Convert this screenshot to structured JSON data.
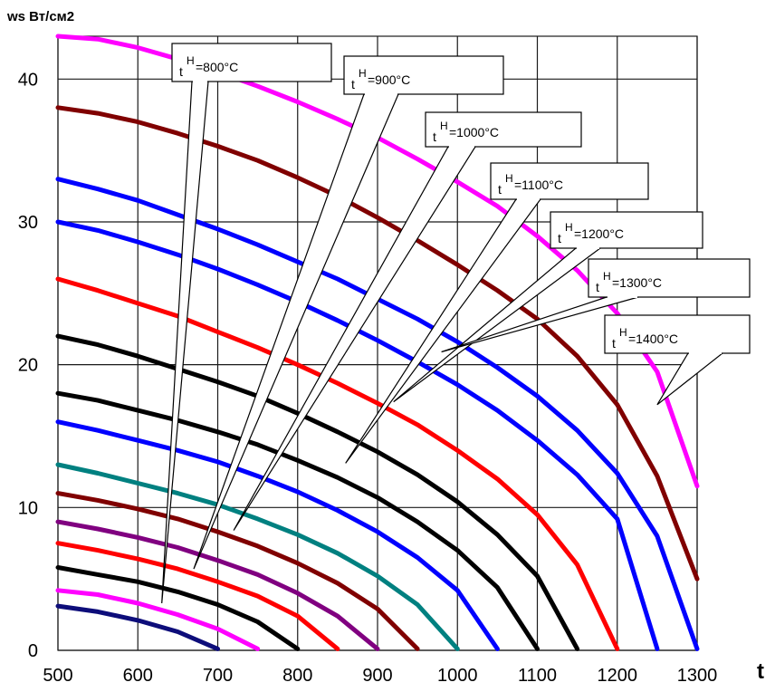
{
  "chart_data": {
    "type": "line",
    "ylabel": "ws Вт/см2",
    "xlabel": "t",
    "xlim": [
      500,
      1300
    ],
    "ylim": [
      0,
      43
    ],
    "xticks": [
      500,
      600,
      700,
      800,
      900,
      1000,
      1100,
      1200,
      1300
    ],
    "yticks": [
      0,
      10,
      20,
      30,
      40
    ],
    "grid": true,
    "series": [
      {
        "color": "#0d0d7a",
        "points": [
          [
            500,
            3.1
          ],
          [
            550,
            2.7
          ],
          [
            600,
            2.1
          ],
          [
            650,
            1.3
          ],
          [
            700,
            0.1
          ]
        ]
      },
      {
        "color": "#ff00ff",
        "points": [
          [
            500,
            4.2
          ],
          [
            550,
            3.9
          ],
          [
            600,
            3.3
          ],
          [
            650,
            2.5
          ],
          [
            700,
            1.5
          ],
          [
            750,
            0.1
          ]
        ]
      },
      {
        "color": "#000000",
        "points": [
          [
            500,
            5.8
          ],
          [
            550,
            5.3
          ],
          [
            600,
            4.8
          ],
          [
            650,
            4.1
          ],
          [
            700,
            3.2
          ],
          [
            750,
            2.0
          ],
          [
            800,
            0.1
          ]
        ]
      },
      {
        "color": "#ff0000",
        "points": [
          [
            500,
            7.5
          ],
          [
            550,
            7.0
          ],
          [
            600,
            6.4
          ],
          [
            650,
            5.7
          ],
          [
            700,
            4.8
          ],
          [
            750,
            3.8
          ],
          [
            800,
            2.4
          ],
          [
            850,
            0.1
          ]
        ]
      },
      {
        "color": "#800080",
        "points": [
          [
            500,
            9.0
          ],
          [
            550,
            8.5
          ],
          [
            600,
            7.9
          ],
          [
            650,
            7.2
          ],
          [
            700,
            6.3
          ],
          [
            750,
            5.3
          ],
          [
            800,
            4.0
          ],
          [
            850,
            2.4
          ],
          [
            900,
            0.1
          ]
        ]
      },
      {
        "color": "#800000",
        "points": [
          [
            500,
            11.0
          ],
          [
            550,
            10.5
          ],
          [
            600,
            9.9
          ],
          [
            650,
            9.2
          ],
          [
            700,
            8.3
          ],
          [
            750,
            7.3
          ],
          [
            800,
            6.1
          ],
          [
            850,
            4.7
          ],
          [
            900,
            2.9
          ],
          [
            950,
            0.1
          ]
        ]
      },
      {
        "color": "#008080",
        "points": [
          [
            500,
            13.0
          ],
          [
            550,
            12.4
          ],
          [
            600,
            11.7
          ],
          [
            650,
            11.0
          ],
          [
            700,
            10.2
          ],
          [
            750,
            9.2
          ],
          [
            800,
            8.1
          ],
          [
            850,
            6.8
          ],
          [
            900,
            5.2
          ],
          [
            950,
            3.2
          ],
          [
            1000,
            0.1
          ]
        ]
      },
      {
        "color": "#0000ff",
        "points": [
          [
            500,
            16.0
          ],
          [
            550,
            15.4
          ],
          [
            600,
            14.7
          ],
          [
            650,
            14.0
          ],
          [
            700,
            13.2
          ],
          [
            750,
            12.2
          ],
          [
            800,
            11.1
          ],
          [
            850,
            9.8
          ],
          [
            900,
            8.3
          ],
          [
            950,
            6.5
          ],
          [
            1000,
            4.2
          ],
          [
            1050,
            0.1
          ]
        ]
      },
      {
        "color": "#000000",
        "points": [
          [
            500,
            18.0
          ],
          [
            550,
            17.5
          ],
          [
            600,
            16.8
          ],
          [
            650,
            16.1
          ],
          [
            700,
            15.3
          ],
          [
            750,
            14.4
          ],
          [
            800,
            13.3
          ],
          [
            850,
            12.1
          ],
          [
            900,
            10.7
          ],
          [
            950,
            9.0
          ],
          [
            1000,
            7.0
          ],
          [
            1050,
            4.4
          ],
          [
            1100,
            0.1
          ]
        ]
      },
      {
        "color": "#000000",
        "points": [
          [
            500,
            22.0
          ],
          [
            550,
            21.4
          ],
          [
            600,
            20.6
          ],
          [
            650,
            19.7
          ],
          [
            700,
            18.8
          ],
          [
            750,
            17.8
          ],
          [
            800,
            16.6
          ],
          [
            850,
            15.3
          ],
          [
            900,
            13.9
          ],
          [
            950,
            12.3
          ],
          [
            1000,
            10.4
          ],
          [
            1050,
            8.1
          ],
          [
            1100,
            5.2
          ],
          [
            1150,
            0.1
          ]
        ]
      },
      {
        "color": "#ff0000",
        "points": [
          [
            500,
            26.0
          ],
          [
            550,
            25.2
          ],
          [
            600,
            24.3
          ],
          [
            650,
            23.4
          ],
          [
            700,
            22.3
          ],
          [
            750,
            21.2
          ],
          [
            800,
            20.0
          ],
          [
            850,
            18.7
          ],
          [
            900,
            17.3
          ],
          [
            950,
            15.8
          ],
          [
            1000,
            14.0
          ],
          [
            1050,
            12.0
          ],
          [
            1100,
            9.5
          ],
          [
            1150,
            6.0
          ],
          [
            1200,
            0.1
          ]
        ]
      },
      {
        "color": "#0000ff",
        "points": [
          [
            500,
            30.0
          ],
          [
            550,
            29.4
          ],
          [
            600,
            28.6
          ],
          [
            650,
            27.7
          ],
          [
            700,
            26.7
          ],
          [
            750,
            25.6
          ],
          [
            800,
            24.4
          ],
          [
            850,
            23.1
          ],
          [
            900,
            21.7
          ],
          [
            950,
            20.2
          ],
          [
            1000,
            18.6
          ],
          [
            1050,
            16.8
          ],
          [
            1100,
            14.7
          ],
          [
            1150,
            12.3
          ],
          [
            1200,
            9.2
          ],
          [
            1250,
            0.1
          ]
        ]
      },
      {
        "color": "#0000ff",
        "points": [
          [
            500,
            33.0
          ],
          [
            550,
            32.3
          ],
          [
            600,
            31.5
          ],
          [
            650,
            30.5
          ],
          [
            700,
            29.5
          ],
          [
            750,
            28.4
          ],
          [
            800,
            27.2
          ],
          [
            850,
            26.0
          ],
          [
            900,
            24.6
          ],
          [
            950,
            23.2
          ],
          [
            1000,
            21.6
          ],
          [
            1050,
            19.8
          ],
          [
            1100,
            17.8
          ],
          [
            1150,
            15.4
          ],
          [
            1200,
            12.4
          ],
          [
            1250,
            8.0
          ],
          [
            1300,
            0.1
          ]
        ]
      },
      {
        "color": "#800000",
        "points": [
          [
            500,
            38.0
          ],
          [
            550,
            37.6
          ],
          [
            600,
            37.0
          ],
          [
            650,
            36.2
          ],
          [
            700,
            35.3
          ],
          [
            750,
            34.3
          ],
          [
            800,
            33.1
          ],
          [
            850,
            31.8
          ],
          [
            900,
            30.3
          ],
          [
            950,
            28.7
          ],
          [
            1000,
            27.0
          ],
          [
            1050,
            25.2
          ],
          [
            1100,
            23.2
          ],
          [
            1150,
            20.6
          ],
          [
            1200,
            17.2
          ],
          [
            1250,
            12.2
          ],
          [
            1300,
            5.0
          ]
        ]
      },
      {
        "color": "#ff00ff",
        "points": [
          [
            500,
            43.0
          ],
          [
            550,
            42.8
          ],
          [
            600,
            42.2
          ],
          [
            650,
            41.4
          ],
          [
            700,
            40.5
          ],
          [
            750,
            39.5
          ],
          [
            800,
            38.4
          ],
          [
            850,
            37.2
          ],
          [
            900,
            35.9
          ],
          [
            950,
            34.4
          ],
          [
            1000,
            32.8
          ],
          [
            1050,
            31.1
          ],
          [
            1100,
            29.0
          ],
          [
            1150,
            26.6
          ],
          [
            1200,
            23.6
          ],
          [
            1250,
            19.5
          ],
          [
            1300,
            11.5
          ]
        ]
      }
    ],
    "annotations": [
      {
        "label_base": "t",
        "label_sup": "H",
        "label_rest": "=800°C",
        "tip": [
          630,
          3.3
        ]
      },
      {
        "label_base": "t",
        "label_sup": "H",
        "label_rest": "=900°C",
        "tip": [
          670,
          5.7
        ]
      },
      {
        "label_base": "t",
        "label_sup": "H",
        "label_rest": "=1000°C",
        "tip": [
          720,
          8.4
        ]
      },
      {
        "label_base": "t",
        "label_sup": "H",
        "label_rest": "=1100°C",
        "tip": [
          860,
          13.1
        ]
      },
      {
        "label_base": "t",
        "label_sup": "H",
        "label_rest": "=1200°C",
        "tip": [
          920,
          17.4
        ]
      },
      {
        "label_base": "t",
        "label_sup": "H",
        "label_rest": "=1300°C",
        "tip": [
          980,
          20.9
        ]
      },
      {
        "label_base": "t",
        "label_sup": "H",
        "label_rest": "=1400°C",
        "tip": [
          1250,
          17.2
        ]
      }
    ]
  },
  "colors": {
    "grid": "#1a1a1a",
    "background": "#ffffff"
  }
}
